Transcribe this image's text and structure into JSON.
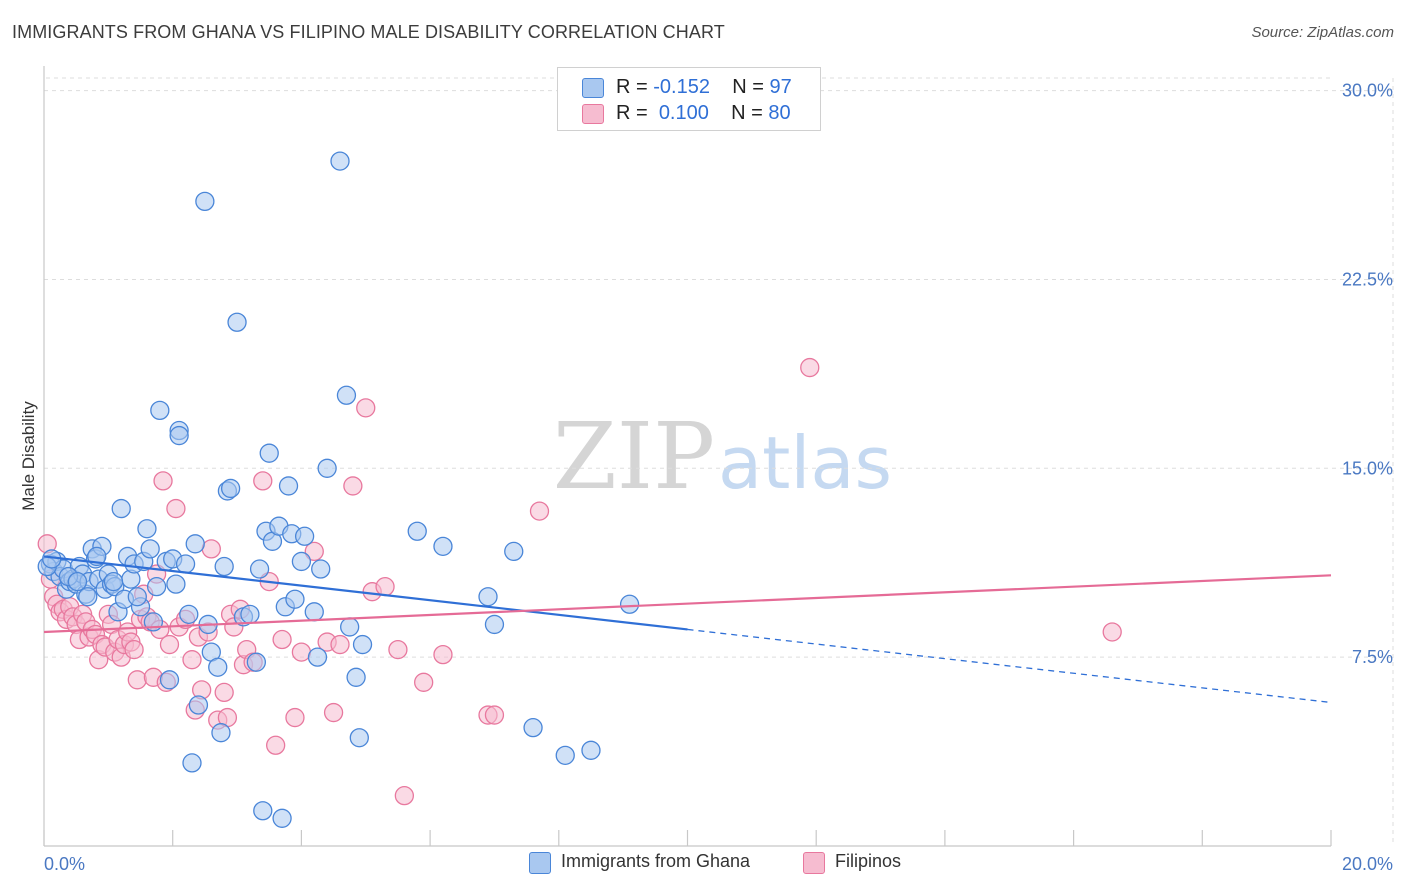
{
  "header": {
    "title": "IMMIGRANTS FROM GHANA VS FILIPINO MALE DISABILITY CORRELATION CHART",
    "source": "Source: ZipAtlas.com"
  },
  "watermark": {
    "zip": "ZIP",
    "atlas": "atlas"
  },
  "legend": {
    "r_label": "R =",
    "n_label": "N =",
    "rows": [
      {
        "r": "-0.152",
        "n": "97"
      },
      {
        "r": "0.100",
        "n": "80"
      }
    ]
  },
  "bottom_legend": [
    "Immigrants from Ghana",
    "Filipinos"
  ],
  "colors": {
    "ghana_fill": "#a9c8f0",
    "ghana_stroke": "#4a86d8",
    "ghana_line": "#2f6fd6",
    "filipino_fill": "#f6bcd0",
    "filipino_stroke": "#e8789e",
    "filipino_line": "#e56b96",
    "grid": "#dddddd",
    "tick_label": "#4a78c2"
  },
  "chart_data": {
    "type": "scatter",
    "title": "IMMIGRANTS FROM GHANA VS FILIPINO MALE DISABILITY CORRELATION CHART",
    "xlabel": "",
    "ylabel": "Male Disability",
    "xlim": [
      0,
      20
    ],
    "ylim": [
      0,
      30.5
    ],
    "x_tick_labels": [
      "0.0%",
      "20.0%"
    ],
    "y_ticks": [
      7.5,
      15.0,
      22.5,
      30.0
    ],
    "y_tick_labels": [
      "7.5%",
      "15.0%",
      "22.5%",
      "30.0%"
    ],
    "grid": true,
    "legend_position": "top-center",
    "series": [
      {
        "name": "Immigrants from Ghana",
        "R": -0.152,
        "N": 97,
        "trend": {
          "x": [
            0,
            20
          ],
          "y": [
            11.5,
            5.7
          ],
          "solid_until_x": 10
        },
        "points": [
          [
            0.1,
            11.2
          ],
          [
            0.15,
            10.9
          ],
          [
            0.2,
            11.3
          ],
          [
            0.25,
            10.7
          ],
          [
            0.3,
            11.0
          ],
          [
            0.35,
            10.2
          ],
          [
            0.4,
            10.5
          ],
          [
            0.45,
            10.6
          ],
          [
            0.5,
            10.4
          ],
          [
            0.55,
            11.1
          ],
          [
            0.6,
            10.8
          ],
          [
            0.65,
            10.0
          ],
          [
            0.7,
            10.5
          ],
          [
            0.75,
            11.8
          ],
          [
            0.8,
            11.4
          ],
          [
            0.85,
            10.6
          ],
          [
            0.9,
            11.9
          ],
          [
            0.95,
            10.2
          ],
          [
            1.0,
            10.8
          ],
          [
            1.05,
            10.4
          ],
          [
            1.1,
            10.3
          ],
          [
            1.15,
            9.3
          ],
          [
            1.2,
            13.4
          ],
          [
            1.25,
            9.8
          ],
          [
            1.3,
            11.5
          ],
          [
            1.35,
            10.6
          ],
          [
            1.4,
            11.2
          ],
          [
            1.5,
            9.5
          ],
          [
            1.55,
            11.3
          ],
          [
            1.6,
            12.6
          ],
          [
            1.65,
            11.8
          ],
          [
            1.7,
            8.9
          ],
          [
            1.75,
            10.3
          ],
          [
            1.8,
            17.3
          ],
          [
            1.9,
            11.3
          ],
          [
            1.95,
            6.6
          ],
          [
            2.0,
            11.4
          ],
          [
            2.05,
            10.4
          ],
          [
            2.1,
            16.5
          ],
          [
            2.1,
            16.3
          ],
          [
            2.2,
            11.2
          ],
          [
            2.25,
            9.2
          ],
          [
            2.3,
            3.3
          ],
          [
            2.35,
            12.0
          ],
          [
            2.4,
            5.6
          ],
          [
            2.5,
            25.6
          ],
          [
            2.55,
            8.8
          ],
          [
            2.6,
            7.7
          ],
          [
            2.7,
            7.1
          ],
          [
            2.75,
            4.5
          ],
          [
            2.8,
            11.1
          ],
          [
            2.85,
            14.1
          ],
          [
            2.9,
            14.2
          ],
          [
            3.0,
            20.8
          ],
          [
            3.1,
            9.1
          ],
          [
            3.2,
            9.2
          ],
          [
            3.3,
            7.3
          ],
          [
            3.35,
            11.0
          ],
          [
            3.4,
            1.4
          ],
          [
            3.45,
            12.5
          ],
          [
            3.5,
            15.6
          ],
          [
            3.55,
            12.1
          ],
          [
            3.65,
            12.7
          ],
          [
            3.7,
            1.1
          ],
          [
            3.75,
            9.5
          ],
          [
            3.8,
            14.3
          ],
          [
            3.85,
            12.4
          ],
          [
            3.9,
            9.8
          ],
          [
            4.0,
            11.3
          ],
          [
            4.05,
            12.3
          ],
          [
            4.2,
            9.3
          ],
          [
            4.25,
            7.5
          ],
          [
            4.3,
            11.0
          ],
          [
            4.4,
            15.0
          ],
          [
            4.6,
            27.2
          ],
          [
            4.7,
            17.9
          ],
          [
            4.75,
            8.7
          ],
          [
            4.85,
            6.7
          ],
          [
            4.9,
            4.3
          ],
          [
            4.95,
            8.0
          ],
          [
            5.8,
            12.5
          ],
          [
            6.2,
            11.9
          ],
          [
            6.9,
            9.9
          ],
          [
            7.0,
            8.8
          ],
          [
            7.3,
            11.7
          ],
          [
            7.6,
            4.7
          ],
          [
            8.1,
            3.6
          ],
          [
            8.5,
            3.8
          ],
          [
            9.1,
            9.6
          ],
          [
            0.05,
            11.1
          ],
          [
            0.12,
            11.4
          ],
          [
            0.38,
            10.7
          ],
          [
            0.52,
            10.5
          ],
          [
            0.68,
            9.9
          ],
          [
            0.82,
            11.5
          ],
          [
            1.08,
            10.5
          ],
          [
            1.45,
            9.9
          ]
        ]
      },
      {
        "name": "Filipinos",
        "R": 0.1,
        "N": 80,
        "trend": {
          "x": [
            0,
            20
          ],
          "y": [
            8.5,
            10.75
          ]
        },
        "points": [
          [
            0.05,
            12.0
          ],
          [
            0.1,
            10.6
          ],
          [
            0.15,
            9.9
          ],
          [
            0.2,
            9.6
          ],
          [
            0.25,
            9.3
          ],
          [
            0.3,
            9.4
          ],
          [
            0.35,
            9.0
          ],
          [
            0.4,
            9.5
          ],
          [
            0.45,
            9.1
          ],
          [
            0.5,
            8.8
          ],
          [
            0.55,
            8.2
          ],
          [
            0.6,
            9.2
          ],
          [
            0.65,
            8.9
          ],
          [
            0.7,
            8.3
          ],
          [
            0.75,
            8.6
          ],
          [
            0.8,
            8.4
          ],
          [
            0.85,
            7.4
          ],
          [
            0.9,
            8.0
          ],
          [
            0.95,
            7.9
          ],
          [
            1.0,
            9.2
          ],
          [
            1.05,
            8.8
          ],
          [
            1.1,
            7.7
          ],
          [
            1.15,
            8.2
          ],
          [
            1.2,
            7.5
          ],
          [
            1.25,
            8.0
          ],
          [
            1.3,
            8.5
          ],
          [
            1.35,
            8.1
          ],
          [
            1.4,
            7.8
          ],
          [
            1.45,
            6.6
          ],
          [
            1.5,
            9.0
          ],
          [
            1.55,
            10.0
          ],
          [
            1.6,
            9.1
          ],
          [
            1.65,
            8.9
          ],
          [
            1.7,
            6.7
          ],
          [
            1.75,
            10.8
          ],
          [
            1.8,
            8.6
          ],
          [
            1.85,
            14.5
          ],
          [
            1.9,
            6.5
          ],
          [
            1.95,
            8.0
          ],
          [
            2.05,
            13.4
          ],
          [
            2.1,
            8.7
          ],
          [
            2.2,
            9.0
          ],
          [
            2.3,
            7.4
          ],
          [
            2.35,
            5.4
          ],
          [
            2.4,
            8.3
          ],
          [
            2.45,
            6.2
          ],
          [
            2.55,
            8.5
          ],
          [
            2.6,
            11.8
          ],
          [
            2.7,
            5.0
          ],
          [
            2.8,
            6.1
          ],
          [
            2.85,
            5.1
          ],
          [
            2.9,
            9.2
          ],
          [
            2.95,
            8.7
          ],
          [
            3.05,
            9.4
          ],
          [
            3.1,
            7.2
          ],
          [
            3.15,
            7.8
          ],
          [
            3.25,
            7.3
          ],
          [
            3.4,
            14.5
          ],
          [
            3.5,
            10.5
          ],
          [
            3.6,
            4.0
          ],
          [
            3.7,
            8.2
          ],
          [
            3.9,
            5.1
          ],
          [
            4.0,
            7.7
          ],
          [
            4.2,
            11.7
          ],
          [
            4.4,
            8.1
          ],
          [
            4.5,
            5.3
          ],
          [
            4.6,
            8.0
          ],
          [
            4.8,
            14.3
          ],
          [
            5.0,
            17.4
          ],
          [
            5.1,
            10.1
          ],
          [
            5.3,
            10.3
          ],
          [
            5.5,
            7.8
          ],
          [
            5.6,
            2.0
          ],
          [
            5.9,
            6.5
          ],
          [
            6.2,
            7.6
          ],
          [
            6.9,
            5.2
          ],
          [
            7.0,
            5.2
          ],
          [
            7.7,
            13.3
          ],
          [
            11.9,
            19.0
          ],
          [
            16.6,
            8.5
          ]
        ]
      }
    ]
  }
}
